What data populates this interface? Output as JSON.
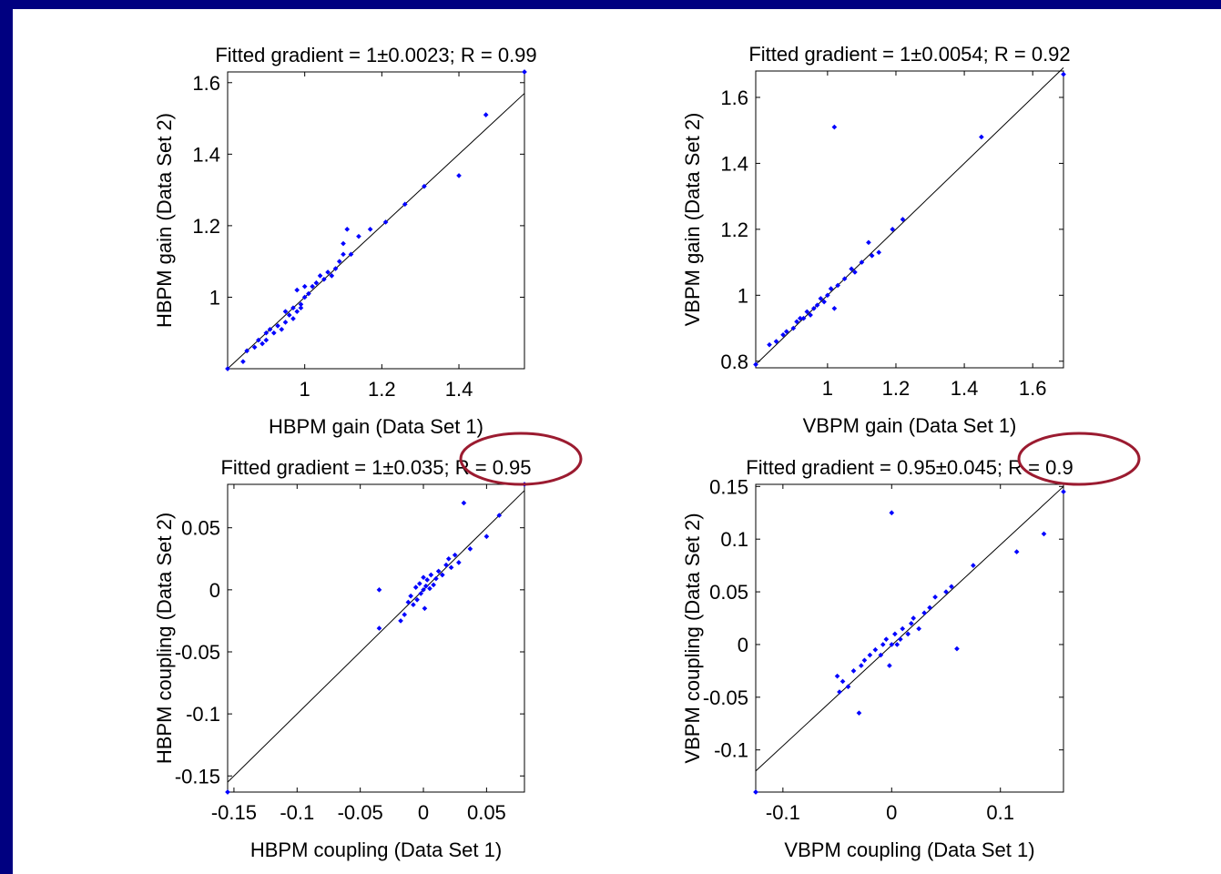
{
  "chart_data": [
    {
      "type": "scatter",
      "title": "Fitted gradient = 1±0.0023; R = 0.99",
      "xlabel": "HBPM gain (Data Set 1)",
      "ylabel": "HBPM gain (Data Set 2)",
      "xlim": [
        0.8,
        1.57
      ],
      "ylim": [
        0.8,
        1.63
      ],
      "xticks": [
        1,
        1.2,
        1.4
      ],
      "xtick_labels": [
        "1",
        "1.2",
        "1.4"
      ],
      "yticks": [
        1,
        1.2,
        1.4,
        1.6
      ],
      "ytick_labels": [
        "1",
        "1.2",
        "1.4",
        "1.6"
      ],
      "fit_line": {
        "x": [
          0.8,
          1.57
        ],
        "y": [
          0.8,
          1.57
        ]
      },
      "marker_color": "#0000ff",
      "line_color": "#000000",
      "points": [
        [
          0.8,
          0.8
        ],
        [
          0.84,
          0.82
        ],
        [
          0.85,
          0.85
        ],
        [
          0.87,
          0.86
        ],
        [
          0.88,
          0.88
        ],
        [
          0.89,
          0.87
        ],
        [
          0.9,
          0.9
        ],
        [
          0.9,
          0.88
        ],
        [
          0.91,
          0.91
        ],
        [
          0.92,
          0.9
        ],
        [
          0.93,
          0.92
        ],
        [
          0.94,
          0.91
        ],
        [
          0.95,
          0.93
        ],
        [
          0.95,
          0.96
        ],
        [
          0.96,
          0.95
        ],
        [
          0.97,
          0.97
        ],
        [
          0.97,
          0.94
        ],
        [
          0.98,
          0.96
        ],
        [
          0.98,
          1.02
        ],
        [
          0.99,
          0.98
        ],
        [
          0.99,
          0.97
        ],
        [
          1.0,
          1.0
        ],
        [
          1.0,
          1.03
        ],
        [
          1.01,
          1.01
        ],
        [
          1.02,
          1.03
        ],
        [
          1.03,
          1.04
        ],
        [
          1.04,
          1.06
        ],
        [
          1.05,
          1.05
        ],
        [
          1.06,
          1.07
        ],
        [
          1.07,
          1.06
        ],
        [
          1.08,
          1.08
        ],
        [
          1.09,
          1.1
        ],
        [
          1.1,
          1.12
        ],
        [
          1.11,
          1.19
        ],
        [
          1.12,
          1.12
        ],
        [
          1.1,
          1.15
        ],
        [
          1.14,
          1.17
        ],
        [
          1.17,
          1.19
        ],
        [
          1.21,
          1.21
        ],
        [
          1.26,
          1.26
        ],
        [
          1.31,
          1.31
        ],
        [
          1.4,
          1.34
        ],
        [
          1.47,
          1.51
        ],
        [
          1.57,
          1.63
        ]
      ]
    },
    {
      "type": "scatter",
      "title": "Fitted gradient = 1±0.0054; R = 0.92",
      "xlabel": "VBPM gain (Data Set 1)",
      "ylabel": "VBPM gain (Data Set 2)",
      "xlim": [
        0.79,
        1.69
      ],
      "ylim": [
        0.78,
        1.68
      ],
      "xticks": [
        1,
        1.2,
        1.4,
        1.6
      ],
      "xtick_labels": [
        "1",
        "1.2",
        "1.4",
        "1.6"
      ],
      "yticks": [
        0.8,
        1,
        1.2,
        1.4,
        1.6
      ],
      "ytick_labels": [
        "0.8",
        "1",
        "1.2",
        "1.4",
        "1.6"
      ],
      "fit_line": {
        "x": [
          0.79,
          1.69
        ],
        "y": [
          0.79,
          1.69
        ]
      },
      "marker_color": "#0000ff",
      "line_color": "#000000",
      "points": [
        [
          0.79,
          0.79
        ],
        [
          0.83,
          0.85
        ],
        [
          0.85,
          0.86
        ],
        [
          0.87,
          0.88
        ],
        [
          0.88,
          0.89
        ],
        [
          0.9,
          0.9
        ],
        [
          0.91,
          0.92
        ],
        [
          0.92,
          0.93
        ],
        [
          0.93,
          0.93
        ],
        [
          0.94,
          0.95
        ],
        [
          0.95,
          0.94
        ],
        [
          0.96,
          0.96
        ],
        [
          0.97,
          0.97
        ],
        [
          0.98,
          0.99
        ],
        [
          0.99,
          0.98
        ],
        [
          1.0,
          1.0
        ],
        [
          1.01,
          1.02
        ],
        [
          1.02,
          0.96
        ],
        [
          1.03,
          1.03
        ],
        [
          1.05,
          1.05
        ],
        [
          1.07,
          1.08
        ],
        [
          1.08,
          1.07
        ],
        [
          1.1,
          1.1
        ],
        [
          1.12,
          1.16
        ],
        [
          1.13,
          1.12
        ],
        [
          1.15,
          1.13
        ],
        [
          1.19,
          1.2
        ],
        [
          1.22,
          1.23
        ],
        [
          1.02,
          1.51
        ],
        [
          1.45,
          1.48
        ],
        [
          1.69,
          1.67
        ]
      ]
    },
    {
      "type": "scatter",
      "title": "Fitted gradient = 1±0.035; R = 0.95",
      "xlabel": "HBPM coupling (Data Set 1)",
      "ylabel": "HBPM coupling (Data Set 2)",
      "xlim": [
        -0.155,
        0.08
      ],
      "ylim": [
        -0.163,
        0.085
      ],
      "xticks": [
        -0.15,
        -0.1,
        -0.05,
        0,
        0.05
      ],
      "xtick_labels": [
        "-0.15",
        "-0.1",
        "-0.05",
        "0",
        "0.05"
      ],
      "yticks": [
        -0.15,
        -0.1,
        -0.05,
        0,
        0.05
      ],
      "ytick_labels": [
        "-0.15",
        "-0.1",
        "-0.05",
        "0",
        "0.05"
      ],
      "fit_line": {
        "x": [
          -0.155,
          0.08
        ],
        "y": [
          -0.155,
          0.08
        ]
      },
      "marker_color": "#0000ff",
      "line_color": "#000000",
      "points": [
        [
          -0.155,
          -0.163
        ],
        [
          -0.035,
          -0.031
        ],
        [
          -0.035,
          0.0
        ],
        [
          -0.018,
          -0.025
        ],
        [
          -0.015,
          -0.02
        ],
        [
          -0.012,
          -0.01
        ],
        [
          -0.01,
          -0.005
        ],
        [
          -0.008,
          -0.012
        ],
        [
          -0.006,
          0.002
        ],
        [
          -0.005,
          -0.008
        ],
        [
          -0.003,
          0.005
        ],
        [
          -0.002,
          -0.003
        ],
        [
          0.0,
          0.0
        ],
        [
          0.0,
          0.01
        ],
        [
          0.001,
          -0.015
        ],
        [
          0.002,
          0.003
        ],
        [
          0.003,
          0.008
        ],
        [
          0.005,
          0.001
        ],
        [
          0.006,
          0.012
        ],
        [
          0.008,
          0.004
        ],
        [
          0.01,
          0.009
        ],
        [
          0.012,
          0.015
        ],
        [
          0.015,
          0.012
        ],
        [
          0.018,
          0.02
        ],
        [
          0.02,
          0.025
        ],
        [
          0.022,
          0.018
        ],
        [
          0.025,
          0.028
        ],
        [
          0.028,
          0.022
        ],
        [
          0.032,
          0.07
        ],
        [
          0.037,
          0.033
        ],
        [
          0.05,
          0.043
        ],
        [
          0.06,
          0.06
        ],
        [
          0.08,
          0.085
        ]
      ]
    },
    {
      "type": "scatter",
      "title": "Fitted gradient = 0.95±0.045; R = 0.9",
      "xlabel": "VBPM coupling (Data Set 1)",
      "ylabel": "VBPM coupling (Data Set 2)",
      "xlim": [
        -0.125,
        0.158
      ],
      "ylim": [
        -0.14,
        0.152
      ],
      "xticks": [
        -0.1,
        0,
        0.1
      ],
      "xtick_labels": [
        "-0.1",
        "0",
        "0.1"
      ],
      "yticks": [
        -0.1,
        -0.05,
        0,
        0.05,
        0.1,
        0.15
      ],
      "ytick_labels": [
        "-0.1",
        "-0.05",
        "0",
        "0.05",
        "0.1",
        "0.15"
      ],
      "fit_line": {
        "x": [
          -0.125,
          0.158
        ],
        "y": [
          -0.12,
          0.15
        ]
      },
      "marker_color": "#0000ff",
      "line_color": "#000000",
      "points": [
        [
          -0.125,
          -0.14
        ],
        [
          -0.05,
          -0.03
        ],
        [
          -0.048,
          -0.045
        ],
        [
          -0.045,
          -0.035
        ],
        [
          -0.04,
          -0.04
        ],
        [
          -0.035,
          -0.025
        ],
        [
          -0.03,
          -0.065
        ],
        [
          -0.028,
          -0.02
        ],
        [
          -0.025,
          -0.015
        ],
        [
          -0.02,
          -0.01
        ],
        [
          -0.015,
          -0.005
        ],
        [
          -0.01,
          -0.01
        ],
        [
          -0.008,
          0.0
        ],
        [
          -0.005,
          0.005
        ],
        [
          -0.002,
          -0.02
        ],
        [
          0.0,
          0.125
        ],
        [
          0.0,
          0.0
        ],
        [
          0.003,
          0.01
        ],
        [
          0.005,
          0.0
        ],
        [
          0.008,
          0.005
        ],
        [
          0.01,
          0.015
        ],
        [
          0.015,
          0.01
        ],
        [
          0.018,
          0.02
        ],
        [
          0.02,
          0.025
        ],
        [
          0.025,
          0.015
        ],
        [
          0.03,
          0.03
        ],
        [
          0.035,
          0.035
        ],
        [
          0.04,
          0.045
        ],
        [
          0.05,
          0.05
        ],
        [
          0.055,
          0.055
        ],
        [
          0.06,
          -0.004
        ],
        [
          0.075,
          0.075
        ],
        [
          0.115,
          0.088
        ],
        [
          0.14,
          0.105
        ],
        [
          0.158,
          0.145
        ]
      ]
    }
  ],
  "highlights": [
    {
      "chart": 2,
      "text": "R = 0.95",
      "color": "#9b1b30"
    },
    {
      "chart": 3,
      "text": "R = 0.9",
      "color": "#9b1b30"
    }
  ]
}
